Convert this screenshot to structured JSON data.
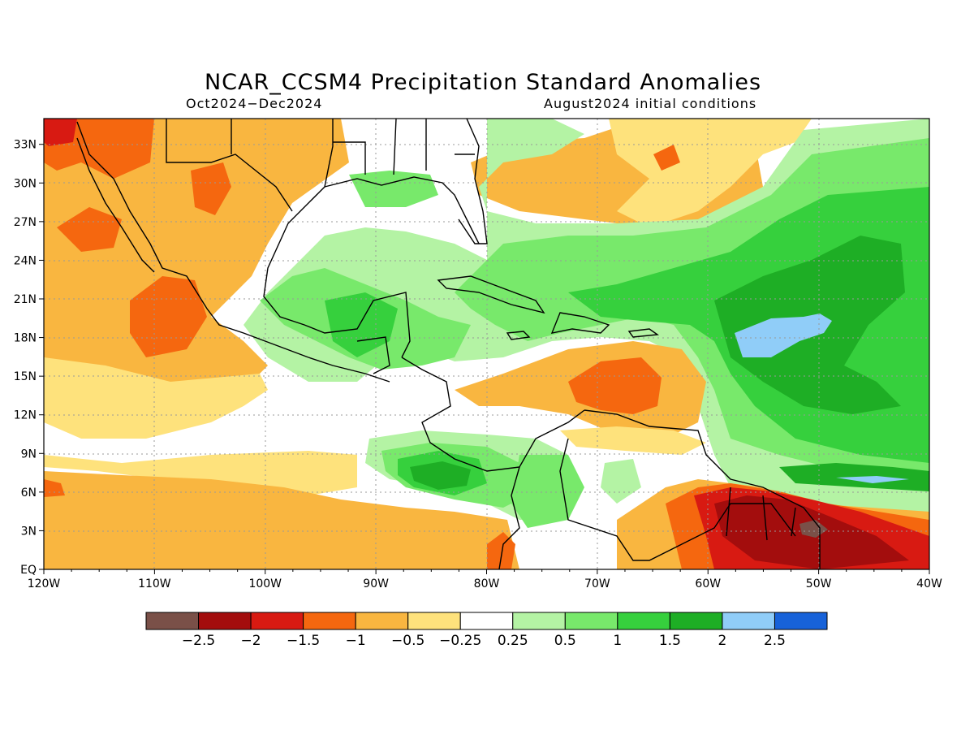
{
  "title": "NCAR_CCSM4 Precipitation Standard Anomalies",
  "subtitle_left": "Oct2024−Dec2024",
  "subtitle_right": "August2024 initial conditions",
  "map": {
    "x_ticks": [
      "120W",
      "110W",
      "100W",
      "90W",
      "80W",
      "70W",
      "60W",
      "50W",
      "40W"
    ],
    "y_ticks": [
      "EQ",
      "3N",
      "6N",
      "9N",
      "12N",
      "15N",
      "18N",
      "21N",
      "24N",
      "27N",
      "30N",
      "33N"
    ],
    "lon_range": [
      -120,
      -40
    ],
    "lat_range": [
      0,
      35
    ],
    "gridlines": "dotted"
  },
  "colorbar": {
    "colors": [
      "#7a5048",
      "#a30d0d",
      "#d81a12",
      "#f5670f",
      "#f9b640",
      "#fee27c",
      "#ffffff",
      "#b4f3a4",
      "#78e96b",
      "#36d03d",
      "#1eae25",
      "#90cdf8",
      "#1762d9"
    ],
    "labels": [
      "−2.5",
      "−2",
      "−1.5",
      "−1",
      "−0.5",
      "−0.25",
      "0.25",
      "0.5",
      "1",
      "1.5",
      "2",
      "2.5"
    ]
  }
}
